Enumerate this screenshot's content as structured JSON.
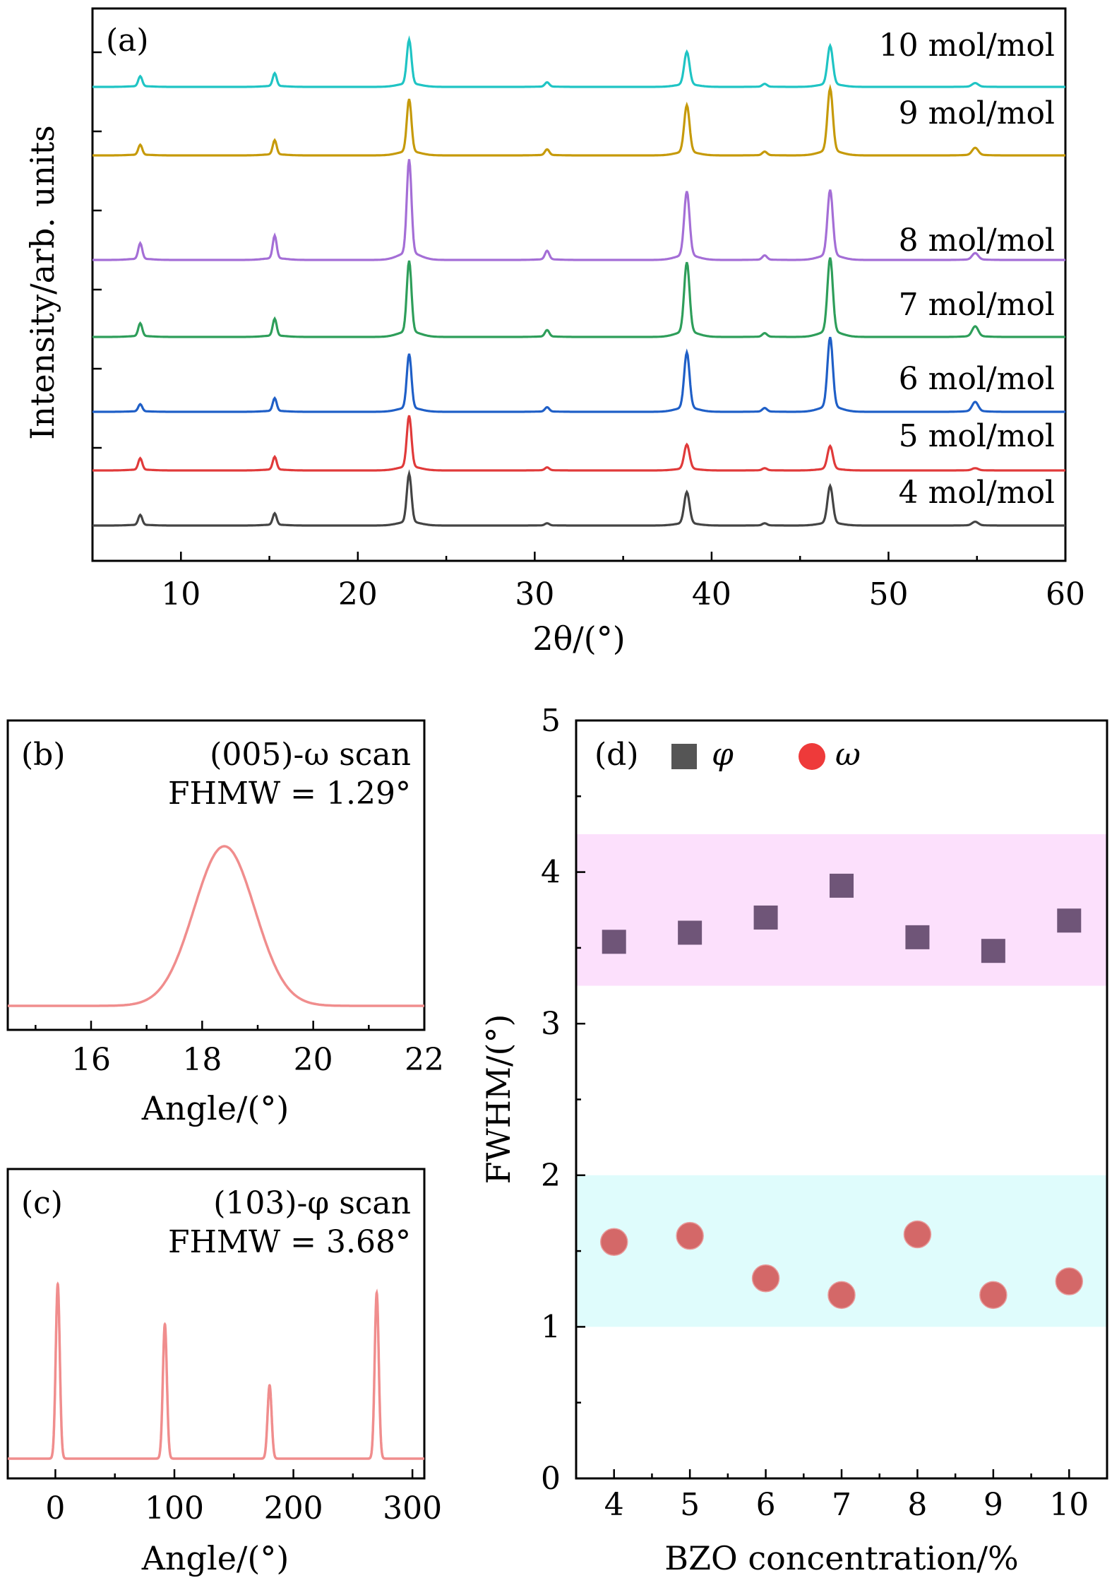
{
  "chart_data": [
    {
      "id": "a",
      "type": "line",
      "panel_label": "(a)",
      "xlabel": "2θ/(°)",
      "ylabel": "Intensity/arb. units",
      "xlim": [
        5,
        60
      ],
      "xticks": [
        10,
        20,
        30,
        40,
        50,
        60
      ],
      "peaks_2theta": [
        7.7,
        15.3,
        22.9,
        30.7,
        38.6,
        43.0,
        46.7,
        54.9
      ],
      "series": [
        {
          "name": "4 mol/mol",
          "color": "#444444",
          "peak_heights": [
            14,
            16,
            68,
            3,
            44,
            3,
            52,
            5
          ]
        },
        {
          "name": "5 mol/mol",
          "color": "#e03a3a",
          "peak_heights": [
            16,
            18,
            72,
            4,
            34,
            3,
            32,
            3
          ]
        },
        {
          "name": "6 mol/mol",
          "color": "#1f5fc7",
          "peak_heights": [
            10,
            18,
            76,
            6,
            78,
            5,
            98,
            13
          ]
        },
        {
          "name": "7 mol/mol",
          "color": "#2e9e5a",
          "peak_heights": [
            18,
            24,
            100,
            9,
            98,
            5,
            104,
            14
          ]
        },
        {
          "name": "8 mol/mol",
          "color": "#a46ed6",
          "peak_heights": [
            22,
            32,
            132,
            12,
            90,
            6,
            92,
            9
          ]
        },
        {
          "name": "9 mol/mol",
          "color": "#c69a0a",
          "peak_heights": [
            14,
            20,
            74,
            8,
            66,
            5,
            88,
            10
          ]
        },
        {
          "name": "10 mol/mol",
          "color": "#1fc4c4",
          "peak_heights": [
            14,
            18,
            62,
            6,
            46,
            4,
            54,
            5
          ]
        }
      ]
    },
    {
      "id": "b",
      "type": "line",
      "panel_label": "(b)",
      "title": "(005)-ω scan",
      "subtitle": "FHMW = 1.29°",
      "xlabel": "Angle/(°)",
      "xlim": [
        14.5,
        22
      ],
      "xticks": [
        16,
        18,
        20,
        22
      ],
      "color": "#f08d8d",
      "peak_center": 18.4,
      "fwhm": 1.29
    },
    {
      "id": "c",
      "type": "line",
      "panel_label": "(c)",
      "title": "(103)-φ scan",
      "subtitle": "FHMW = 3.68°",
      "xlabel": "Angle/(°)",
      "xlim": [
        -40,
        310
      ],
      "xticks": [
        0,
        100,
        200,
        300
      ],
      "color": "#f08d8d",
      "peaks": [
        {
          "x": 2,
          "height": 1.0
        },
        {
          "x": 92,
          "height": 0.77
        },
        {
          "x": 180,
          "height": 0.42
        },
        {
          "x": 270,
          "height": 0.95
        }
      ]
    },
    {
      "id": "d",
      "type": "scatter",
      "panel_label": "(d)",
      "xlabel": "BZO concentration/%",
      "ylabel": "FWHM/(°)",
      "xlim": [
        3.5,
        10.5
      ],
      "ylim": [
        0,
        5
      ],
      "xticks": [
        4,
        5,
        6,
        7,
        8,
        9,
        10
      ],
      "yticks": [
        0,
        1,
        2,
        3,
        4,
        5
      ],
      "bands": [
        {
          "y0": 3.25,
          "y1": 4.25,
          "color": "#fce0fc"
        },
        {
          "y0": 1.0,
          "y1": 2.0,
          "color": "#dffcfc"
        }
      ],
      "series": [
        {
          "name": "φ",
          "marker": "square",
          "legend_color": "#555555",
          "color": "#6f5578",
          "x": [
            4,
            5,
            6,
            7,
            8,
            9,
            10
          ],
          "y": [
            3.54,
            3.6,
            3.7,
            3.91,
            3.57,
            3.48,
            3.68
          ]
        },
        {
          "name": "ω",
          "marker": "circle",
          "legend_color": "#ee3a3a",
          "color": "#d46868",
          "x": [
            4,
            5,
            6,
            7,
            8,
            9,
            10
          ],
          "y": [
            1.56,
            1.6,
            1.32,
            1.21,
            1.61,
            1.21,
            1.3
          ]
        }
      ]
    }
  ]
}
